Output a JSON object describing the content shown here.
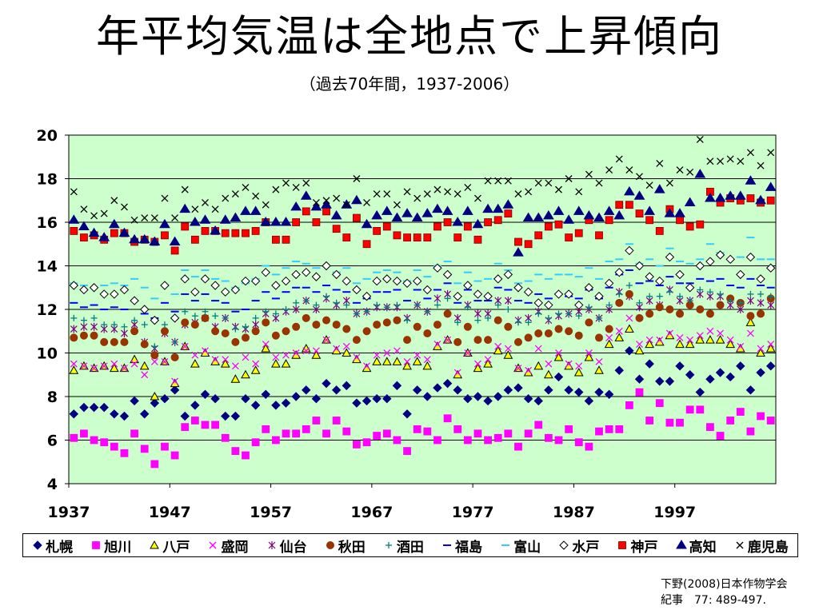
{
  "slide": {
    "title": "年平均気温は全地点で上昇傾向",
    "subtitle": "（過去70年間，1937-2006）",
    "citation_line1": "下野(2008)日本作物学会",
    "citation_line2": "紀事　77: 489-497."
  },
  "chart_data": {
    "type": "scatter",
    "title": "",
    "xlabel": "",
    "ylabel": "",
    "xlim": [
      1937,
      2006
    ],
    "ylim": [
      4,
      20
    ],
    "x_ticks": [
      1937,
      1947,
      1957,
      1967,
      1977,
      1987,
      1997
    ],
    "y_ticks": [
      4,
      6,
      8,
      10,
      12,
      14,
      16,
      18,
      20
    ],
    "grid": "horizontal",
    "plot_background": "#ccffcc",
    "legend_position": "bottom",
    "start_year": 1937,
    "series": [
      {
        "name": "札幌",
        "marker": "diamond-filled",
        "color": "#000080",
        "values": [
          7.2,
          7.5,
          7.5,
          7.5,
          7.2,
          7.1,
          7.8,
          7.2,
          7.7,
          7.9,
          8.3,
          7.1,
          7.6,
          8.1,
          7.9,
          7.1,
          7.1,
          7.9,
          7.6,
          8.1,
          7.6,
          7.7,
          8.0,
          8.3,
          7.9,
          8.6,
          8.3,
          8.5,
          7.7,
          7.8,
          7.9,
          7.9,
          8.5,
          7.2,
          8.3,
          8.0,
          8.4,
          8.6,
          8.3,
          7.9,
          8.0,
          7.8,
          8.0,
          8.3,
          8.4,
          7.9,
          7.8,
          8.3,
          8.9,
          8.3,
          8.2,
          7.8,
          8.2,
          8.1,
          9.2,
          10.1,
          8.8,
          9.5,
          8.7,
          8.7,
          9.4,
          9.0,
          8.2,
          8.8,
          9.1,
          8.9,
          9.4,
          8.3,
          9.1,
          9.4
        ]
      },
      {
        "name": "旭川",
        "marker": "square-filled",
        "color": "#ff00ff",
        "values": [
          6.1,
          6.3,
          6.0,
          5.9,
          5.7,
          5.4,
          6.3,
          5.6,
          4.9,
          5.7,
          5.3,
          6.6,
          6.9,
          6.7,
          6.7,
          6.1,
          5.5,
          5.3,
          5.9,
          6.5,
          6.0,
          6.3,
          6.3,
          6.5,
          6.9,
          6.3,
          6.9,
          6.4,
          5.8,
          5.9,
          6.2,
          6.3,
          6.0,
          5.5,
          6.5,
          6.4,
          6.0,
          7.0,
          6.5,
          6.0,
          6.3,
          6.0,
          6.1,
          6.3,
          5.7,
          6.3,
          6.7,
          6.1,
          6.0,
          6.5,
          5.9,
          5.7,
          6.4,
          6.5,
          6.5,
          7.6,
          8.2,
          6.9,
          7.7,
          6.8,
          6.8,
          7.4,
          7.4,
          6.6,
          6.2,
          6.9,
          7.3,
          6.4,
          7.1,
          6.9
        ]
      },
      {
        "name": "八戸",
        "marker": "triangle-hollow",
        "color": "#ffff00",
        "values": [
          9.2,
          9.4,
          9.3,
          9.4,
          9.3,
          9.3,
          9.7,
          9.4,
          8.0,
          9.6,
          8.6,
          10.3,
          9.5,
          10.0,
          9.6,
          9.5,
          8.8,
          9.0,
          9.2,
          10.2,
          9.5,
          9.5,
          9.9,
          10.2,
          9.9,
          10.6,
          10.1,
          10.0,
          9.7,
          9.3,
          9.6,
          9.6,
          9.6,
          9.4,
          9.6,
          9.4,
          10.3,
          10.6,
          9.0,
          10.0,
          9.3,
          9.5,
          10.1,
          9.9,
          9.3,
          9.1,
          9.4,
          9.0,
          9.8,
          9.4,
          9.1,
          9.8,
          9.2,
          10.4,
          10.7,
          11.1,
          10.1,
          10.4,
          10.5,
          10.8,
          10.4,
          10.4,
          10.6,
          10.6,
          10.6,
          10.4,
          10.2,
          11.4,
          10.0,
          10.2
        ]
      },
      {
        "name": "盛岡",
        "marker": "x",
        "color": "#ff00ff",
        "values": [
          9.5,
          9.4,
          9.3,
          9.4,
          9.5,
          9.3,
          9.5,
          9.0,
          9.6,
          9.6,
          8.7,
          10.3,
          9.9,
          10.1,
          9.7,
          9.7,
          9.4,
          9.8,
          9.5,
          10.4,
          9.8,
          9.9,
          10.0,
          10.1,
          10.1,
          10.6,
          10.2,
          10.3,
          9.8,
          9.4,
          9.9,
          10.0,
          10.1,
          9.6,
          9.9,
          9.7,
          10.4,
          10.6,
          9.1,
          10.0,
          9.5,
          9.7,
          10.3,
          10.2,
          9.3,
          9.2,
          10.2,
          9.5,
          10.0,
          9.5,
          9.4,
          10.0,
          9.6,
          10.7,
          11.0,
          11.6,
          10.4,
          10.6,
          10.6,
          10.9,
          10.7,
          10.6,
          10.8,
          11.0,
          10.9,
          10.6,
          10.3,
          10.9,
          10.2,
          10.4
        ]
      },
      {
        "name": "仙台",
        "marker": "star",
        "color": "#800080",
        "values": [
          11.1,
          11.2,
          11.2,
          11.1,
          11.1,
          10.9,
          11.3,
          10.5,
          10.2,
          10.9,
          10.5,
          11.3,
          11.4,
          11.6,
          11.2,
          11.6,
          11.2,
          11.1,
          11.3,
          11.8,
          11.6,
          11.9,
          12.0,
          12.4,
          12.0,
          12.5,
          12.2,
          12.4,
          11.8,
          11.9,
          12.1,
          12.1,
          12.1,
          11.6,
          12.2,
          11.9,
          12.5,
          12.7,
          11.6,
          12.2,
          11.8,
          11.8,
          12.4,
          12.4,
          11.5,
          11.6,
          11.9,
          11.5,
          11.7,
          11.8,
          11.9,
          12.0,
          11.6,
          12.0,
          12.8,
          12.6,
          12.1,
          12.4,
          12.2,
          12.9,
          12.4,
          12.4,
          12.7,
          12.6,
          12.6,
          12.2,
          12.0,
          12.4,
          12.3,
          12.2
        ]
      },
      {
        "name": "秋田",
        "marker": "circle-filled",
        "color": "#993300",
        "values": [
          10.7,
          10.8,
          10.8,
          10.5,
          10.5,
          10.5,
          11.0,
          10.4,
          9.9,
          11.0,
          9.8,
          11.4,
          11.3,
          11.6,
          11.0,
          10.9,
          10.5,
          10.7,
          11.0,
          11.4,
          10.8,
          11.0,
          11.2,
          11.6,
          11.3,
          11.5,
          11.3,
          11.1,
          10.6,
          11.0,
          11.3,
          11.4,
          11.5,
          10.6,
          11.2,
          10.9,
          11.3,
          11.8,
          10.5,
          11.2,
          10.6,
          10.6,
          11.5,
          11.2,
          10.5,
          10.7,
          10.9,
          10.9,
          11.1,
          11.0,
          10.8,
          11.4,
          10.7,
          11.1,
          12.3,
          12.7,
          11.6,
          11.8,
          12.1,
          12.0,
          11.8,
          12.2,
          12.0,
          11.8,
          12.2,
          12.5,
          12.3,
          11.7,
          11.8,
          12.5
        ]
      },
      {
        "name": "酒田",
        "marker": "plus",
        "color": "#008080",
        "values": [
          11.6,
          11.5,
          11.6,
          11.3,
          11.3,
          11.2,
          11.5,
          11.3,
          10.3,
          11.3,
          10.5,
          11.9,
          11.7,
          11.9,
          11.7,
          11.6,
          11.1,
          11.2,
          11.6,
          11.9,
          11.8,
          12.0,
          12.3,
          12.4,
          12.2,
          12.6,
          12.3,
          12.2,
          11.8,
          11.9,
          12.2,
          12.1,
          12.2,
          11.5,
          12.2,
          11.9,
          12.2,
          12.5,
          11.4,
          12.1,
          11.5,
          11.6,
          12.2,
          12.0,
          11.4,
          11.4,
          11.8,
          11.6,
          11.8,
          11.8,
          11.7,
          12.1,
          11.6,
          12.2,
          12.7,
          13.1,
          12.3,
          12.6,
          12.6,
          12.8,
          12.6,
          12.4,
          12.9,
          12.8,
          12.7,
          12.4,
          12.3,
          12.7,
          12.7,
          12.6
        ]
      },
      {
        "name": "福島",
        "marker": "dash",
        "color": "#0000ff",
        "values": [
          12.3,
          12.1,
          12.2,
          12.0,
          12.1,
          12.0,
          12.4,
          11.8,
          11.6,
          12.3,
          11.9,
          12.7,
          12.4,
          12.7,
          12.4,
          12.3,
          11.9,
          12.0,
          12.4,
          12.8,
          12.5,
          12.8,
          13.0,
          13.0,
          12.8,
          13.1,
          12.9,
          12.8,
          12.3,
          12.5,
          12.8,
          12.8,
          12.9,
          12.4,
          12.9,
          12.5,
          12.9,
          13.2,
          12.3,
          12.9,
          12.4,
          12.4,
          13.0,
          12.9,
          12.4,
          12.3,
          12.7,
          12.5,
          12.7,
          12.6,
          12.5,
          12.9,
          12.5,
          13.0,
          13.6,
          13.8,
          13.2,
          13.3,
          13.1,
          13.5,
          13.2,
          13.2,
          13.4,
          13.3,
          13.4,
          13.1,
          13.0,
          13.4,
          13.1,
          13.0
        ]
      },
      {
        "name": "富山",
        "marker": "dash",
        "color": "#33ccff",
        "values": [
          13.2,
          13.1,
          13.0,
          13.1,
          13.2,
          13.1,
          13.4,
          13.0,
          12.5,
          13.1,
          12.7,
          13.8,
          13.5,
          13.8,
          13.4,
          13.3,
          13.0,
          13.2,
          13.4,
          14.0,
          13.6,
          13.9,
          14.2,
          14.1,
          13.9,
          14.0,
          13.7,
          13.9,
          13.2,
          13.4,
          13.7,
          13.8,
          13.7,
          13.3,
          13.8,
          13.5,
          14.0,
          14.2,
          13.2,
          13.7,
          13.3,
          13.4,
          14.1,
          13.8,
          13.2,
          13.3,
          13.6,
          13.4,
          13.6,
          13.6,
          13.5,
          13.9,
          13.4,
          14.2,
          14.3,
          15.0,
          14.1,
          14.3,
          14.0,
          14.8,
          14.2,
          14.1,
          14.3,
          15.0,
          14.6,
          14.3,
          14.4,
          15.3,
          14.3,
          14.3
        ]
      },
      {
        "name": "水戸",
        "marker": "diamond-hollow",
        "color": "#000000",
        "values": [
          13.1,
          12.9,
          13.0,
          12.7,
          12.7,
          12.9,
          12.4,
          12.0,
          11.5,
          13.1,
          11.6,
          13.4,
          12.8,
          13.4,
          13.1,
          12.8,
          12.9,
          13.3,
          13.3,
          13.7,
          13.1,
          13.3,
          13.6,
          13.7,
          13.5,
          14.0,
          13.6,
          13.3,
          12.9,
          12.6,
          13.3,
          13.4,
          13.3,
          13.2,
          13.3,
          12.9,
          13.9,
          13.6,
          12.6,
          13.1,
          12.7,
          12.6,
          13.4,
          13.6,
          13.0,
          12.8,
          12.3,
          12.2,
          12.7,
          12.7,
          12.2,
          13.0,
          12.6,
          13.2,
          13.7,
          14.7,
          14.0,
          13.5,
          13.3,
          14.4,
          13.6,
          13.0,
          14.0,
          14.2,
          14.5,
          14.3,
          13.6,
          14.4,
          13.4,
          13.9
        ]
      },
      {
        "name": "神戸",
        "marker": "square-filled",
        "color": "#ff0000",
        "values": [
          15.6,
          15.3,
          15.4,
          15.2,
          15.5,
          15.5,
          15.1,
          15.2,
          15.1,
          15.4,
          14.7,
          15.8,
          15.2,
          15.6,
          15.6,
          15.5,
          15.5,
          15.5,
          15.6,
          16.0,
          15.2,
          15.2,
          16.0,
          16.5,
          16.0,
          16.5,
          15.7,
          15.3,
          16.2,
          15.0,
          15.6,
          15.8,
          15.4,
          15.3,
          15.3,
          15.3,
          15.8,
          16.0,
          15.3,
          15.8,
          15.2,
          16.0,
          16.1,
          16.4,
          15.1,
          15.0,
          15.4,
          15.8,
          15.9,
          15.3,
          15.5,
          16.1,
          15.4,
          16.1,
          16.8,
          16.8,
          16.4,
          16.1,
          15.6,
          16.6,
          16.1,
          15.8,
          15.9,
          17.4,
          16.9,
          17.1,
          17.0,
          17.1,
          16.9,
          17.0
        ]
      },
      {
        "name": "高知",
        "marker": "triangle-filled",
        "color": "#000080",
        "values": [
          16.1,
          15.8,
          15.5,
          15.3,
          15.9,
          15.5,
          15.2,
          15.2,
          15.1,
          15.9,
          15.1,
          16.6,
          16.0,
          16.1,
          15.6,
          16.1,
          16.2,
          16.5,
          16.5,
          16.0,
          16.0,
          16.0,
          16.7,
          17.2,
          16.7,
          16.8,
          16.3,
          16.8,
          17.0,
          15.9,
          16.3,
          16.5,
          16.2,
          16.4,
          16.2,
          16.4,
          16.6,
          16.5,
          16.0,
          16.5,
          15.9,
          16.6,
          16.6,
          16.8,
          14.6,
          16.2,
          16.2,
          16.3,
          16.5,
          16.1,
          16.5,
          16.3,
          16.2,
          16.5,
          16.3,
          17.4,
          17.2,
          16.5,
          17.5,
          16.4,
          16.4,
          16.9,
          18.2,
          17.1,
          17.1,
          17.2,
          17.2,
          17.9,
          17.0,
          17.6
        ]
      },
      {
        "name": "鹿児島",
        "marker": "x",
        "color": "#000000",
        "values": [
          17.4,
          16.6,
          16.3,
          16.4,
          17.0,
          16.7,
          16.1,
          16.2,
          16.2,
          17.1,
          16.2,
          17.5,
          16.6,
          16.9,
          16.6,
          17.1,
          17.3,
          17.6,
          17.2,
          16.8,
          17.5,
          17.8,
          17.6,
          17.8,
          16.9,
          17.0,
          17.1,
          16.8,
          18.0,
          16.9,
          17.3,
          17.3,
          16.8,
          17.4,
          17.1,
          17.3,
          17.5,
          17.4,
          17.3,
          17.6,
          17.1,
          17.9,
          17.9,
          17.9,
          17.3,
          17.4,
          17.8,
          17.8,
          17.5,
          18.0,
          17.4,
          18.2,
          17.8,
          18.4,
          18.9,
          18.4,
          18.1,
          17.7,
          18.7,
          17.8,
          18.4,
          18.3,
          19.8,
          18.8,
          18.8,
          18.9,
          18.8,
          19.2,
          18.6,
          19.2
        ]
      }
    ]
  }
}
